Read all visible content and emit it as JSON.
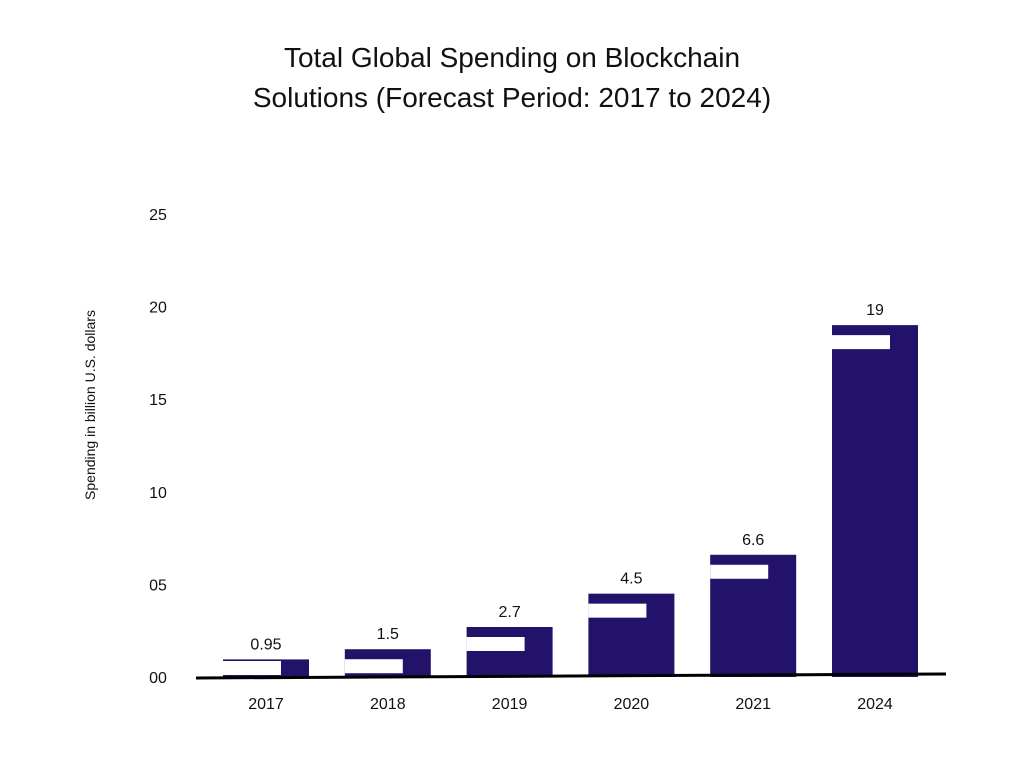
{
  "chart_data": {
    "type": "bar",
    "title_lines": [
      "Total Global Spending on Blockchain",
      "Solutions (Forecast Period: 2017 to 2024)"
    ],
    "xlabel": "",
    "ylabel": "Spending in billion U.S. dollars",
    "categories": [
      "2017",
      "2018",
      "2019",
      "2020",
      "2021",
      "2024"
    ],
    "values": [
      0.95,
      1.5,
      2.7,
      4.5,
      6.6,
      19
    ],
    "value_labels": [
      "0.95",
      "1.5",
      "2.7",
      "4.5",
      "6.6",
      "19"
    ],
    "yticks": [
      0,
      5,
      10,
      15,
      20,
      25
    ],
    "ytick_labels": [
      "00",
      "05",
      "10",
      "15",
      "20",
      "25"
    ],
    "ylim": [
      0,
      25
    ],
    "grid": false,
    "bar_color": "#23126a",
    "axis_color": "#000000"
  }
}
